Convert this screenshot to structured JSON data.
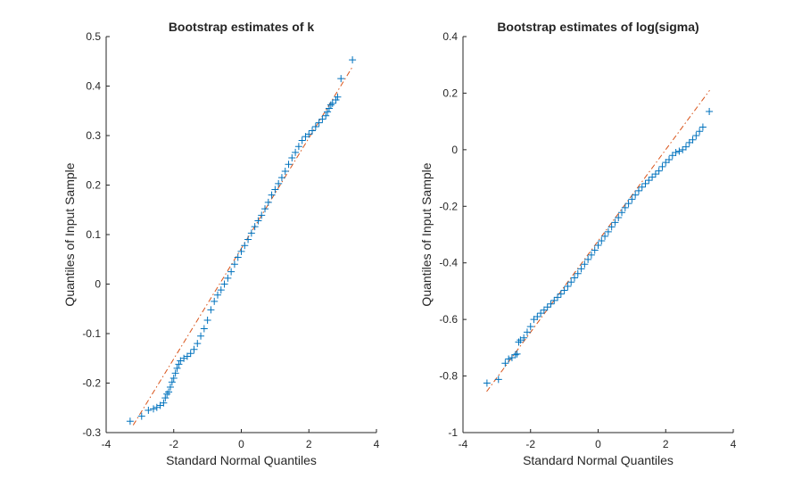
{
  "chart_data": [
    {
      "type": "scatter",
      "title": "Bootstrap estimates of k",
      "xlabel": "Standard Normal Quantiles",
      "ylabel": "Quantiles of Input Sample",
      "xlim": [
        -4,
        4
      ],
      "ylim": [
        -0.3,
        0.5
      ],
      "xticks": [
        "-4",
        "-2",
        "0",
        "2",
        "4"
      ],
      "yticks": [
        "-0.3",
        "-0.2",
        "-0.1",
        "0",
        "0.1",
        "0.2",
        "0.3",
        "0.4",
        "0.5"
      ],
      "grid": false,
      "marker_color": "#0072BD",
      "line_color": "#D95319",
      "reference_line": {
        "x": [
          -3.2,
          3.3
        ],
        "y": [
          -0.285,
          0.44
        ]
      },
      "series": [
        {
          "points": [
            [
              -3.29,
              -0.277
            ],
            [
              -2.95,
              -0.267
            ],
            [
              -2.75,
              -0.255
            ],
            [
              -2.6,
              -0.252
            ],
            [
              -2.5,
              -0.249
            ],
            [
              -2.4,
              -0.245
            ],
            [
              -2.3,
              -0.24
            ],
            [
              -2.25,
              -0.23
            ],
            [
              -2.2,
              -0.222
            ],
            [
              -2.15,
              -0.218
            ],
            [
              -2.1,
              -0.208
            ],
            [
              -2.05,
              -0.198
            ],
            [
              -2.0,
              -0.19
            ],
            [
              -1.95,
              -0.18
            ],
            [
              -1.9,
              -0.17
            ],
            [
              -1.85,
              -0.162
            ],
            [
              -1.8,
              -0.155
            ],
            [
              -1.7,
              -0.15
            ],
            [
              -1.6,
              -0.146
            ],
            [
              -1.5,
              -0.14
            ],
            [
              -1.4,
              -0.132
            ],
            [
              -1.3,
              -0.12
            ],
            [
              -1.2,
              -0.105
            ],
            [
              -1.1,
              -0.09
            ],
            [
              -1.0,
              -0.073
            ],
            [
              -0.9,
              -0.052
            ],
            [
              -0.8,
              -0.035
            ],
            [
              -0.7,
              -0.022
            ],
            [
              -0.6,
              -0.012
            ],
            [
              -0.5,
              0.0
            ],
            [
              -0.4,
              0.012
            ],
            [
              -0.3,
              0.025
            ],
            [
              -0.2,
              0.04
            ],
            [
              -0.1,
              0.054
            ],
            [
              0.0,
              0.066
            ],
            [
              0.1,
              0.078
            ],
            [
              0.2,
              0.09
            ],
            [
              0.3,
              0.103
            ],
            [
              0.4,
              0.116
            ],
            [
              0.5,
              0.128
            ],
            [
              0.6,
              0.139
            ],
            [
              0.7,
              0.152
            ],
            [
              0.8,
              0.165
            ],
            [
              0.9,
              0.18
            ],
            [
              1.0,
              0.191
            ],
            [
              1.1,
              0.203
            ],
            [
              1.2,
              0.215
            ],
            [
              1.3,
              0.228
            ],
            [
              1.4,
              0.242
            ],
            [
              1.5,
              0.255
            ],
            [
              1.6,
              0.266
            ],
            [
              1.7,
              0.278
            ],
            [
              1.8,
              0.29
            ],
            [
              1.9,
              0.298
            ],
            [
              2.0,
              0.303
            ],
            [
              2.1,
              0.31
            ],
            [
              2.2,
              0.318
            ],
            [
              2.3,
              0.326
            ],
            [
              2.4,
              0.333
            ],
            [
              2.5,
              0.34
            ],
            [
              2.55,
              0.348
            ],
            [
              2.6,
              0.355
            ],
            [
              2.65,
              0.362
            ],
            [
              2.7,
              0.365
            ],
            [
              2.8,
              0.372
            ],
            [
              2.85,
              0.378
            ],
            [
              2.95,
              0.415
            ],
            [
              3.29,
              0.453
            ]
          ]
        }
      ]
    },
    {
      "type": "scatter",
      "title": "Bootstrap estimates of log(sigma)",
      "xlabel": "Standard Normal Quantiles",
      "ylabel": "Quantiles of Input Sample",
      "xlim": [
        -4,
        4
      ],
      "ylim": [
        -1,
        0.4
      ],
      "xticks": [
        "-4",
        "-2",
        "0",
        "2",
        "4"
      ],
      "yticks": [
        "-1",
        "-0.8",
        "-0.6",
        "-0.4",
        "-0.2",
        "0",
        "0.2",
        "0.4"
      ],
      "grid": false,
      "marker_color": "#0072BD",
      "line_color": "#D95319",
      "reference_line": {
        "x": [
          -3.3,
          3.3
        ],
        "y": [
          -0.855,
          0.21
        ]
      },
      "series": [
        {
          "points": [
            [
              -3.29,
              -0.825
            ],
            [
              -2.95,
              -0.812
            ],
            [
              -2.75,
              -0.755
            ],
            [
              -2.65,
              -0.74
            ],
            [
              -2.55,
              -0.735
            ],
            [
              -2.45,
              -0.725
            ],
            [
              -2.4,
              -0.722
            ],
            [
              -2.35,
              -0.68
            ],
            [
              -2.3,
              -0.673
            ],
            [
              -2.2,
              -0.665
            ],
            [
              -2.1,
              -0.645
            ],
            [
              -2.0,
              -0.625
            ],
            [
              -1.9,
              -0.6
            ],
            [
              -1.8,
              -0.59
            ],
            [
              -1.7,
              -0.578
            ],
            [
              -1.6,
              -0.567
            ],
            [
              -1.5,
              -0.556
            ],
            [
              -1.4,
              -0.545
            ],
            [
              -1.3,
              -0.533
            ],
            [
              -1.2,
              -0.522
            ],
            [
              -1.1,
              -0.51
            ],
            [
              -1.0,
              -0.497
            ],
            [
              -0.9,
              -0.483
            ],
            [
              -0.8,
              -0.468
            ],
            [
              -0.7,
              -0.453
            ],
            [
              -0.6,
              -0.438
            ],
            [
              -0.5,
              -0.421
            ],
            [
              -0.4,
              -0.405
            ],
            [
              -0.3,
              -0.388
            ],
            [
              -0.2,
              -0.372
            ],
            [
              -0.1,
              -0.355
            ],
            [
              0.0,
              -0.338
            ],
            [
              0.1,
              -0.322
            ],
            [
              0.2,
              -0.306
            ],
            [
              0.3,
              -0.29
            ],
            [
              0.4,
              -0.273
            ],
            [
              0.5,
              -0.257
            ],
            [
              0.6,
              -0.24
            ],
            [
              0.7,
              -0.222
            ],
            [
              0.8,
              -0.205
            ],
            [
              0.9,
              -0.19
            ],
            [
              1.0,
              -0.175
            ],
            [
              1.1,
              -0.16
            ],
            [
              1.2,
              -0.145
            ],
            [
              1.3,
              -0.132
            ],
            [
              1.4,
              -0.12
            ],
            [
              1.5,
              -0.108
            ],
            [
              1.6,
              -0.097
            ],
            [
              1.7,
              -0.086
            ],
            [
              1.8,
              -0.075
            ],
            [
              1.9,
              -0.06
            ],
            [
              2.0,
              -0.045
            ],
            [
              2.1,
              -0.035
            ],
            [
              2.2,
              -0.02
            ],
            [
              2.3,
              -0.01
            ],
            [
              2.4,
              -0.005
            ],
            [
              2.5,
              0.0
            ],
            [
              2.6,
              0.01
            ],
            [
              2.7,
              0.025
            ],
            [
              2.8,
              0.035
            ],
            [
              2.9,
              0.05
            ],
            [
              3.0,
              0.065
            ],
            [
              3.1,
              0.08
            ],
            [
              3.29,
              0.135
            ]
          ]
        }
      ]
    }
  ]
}
